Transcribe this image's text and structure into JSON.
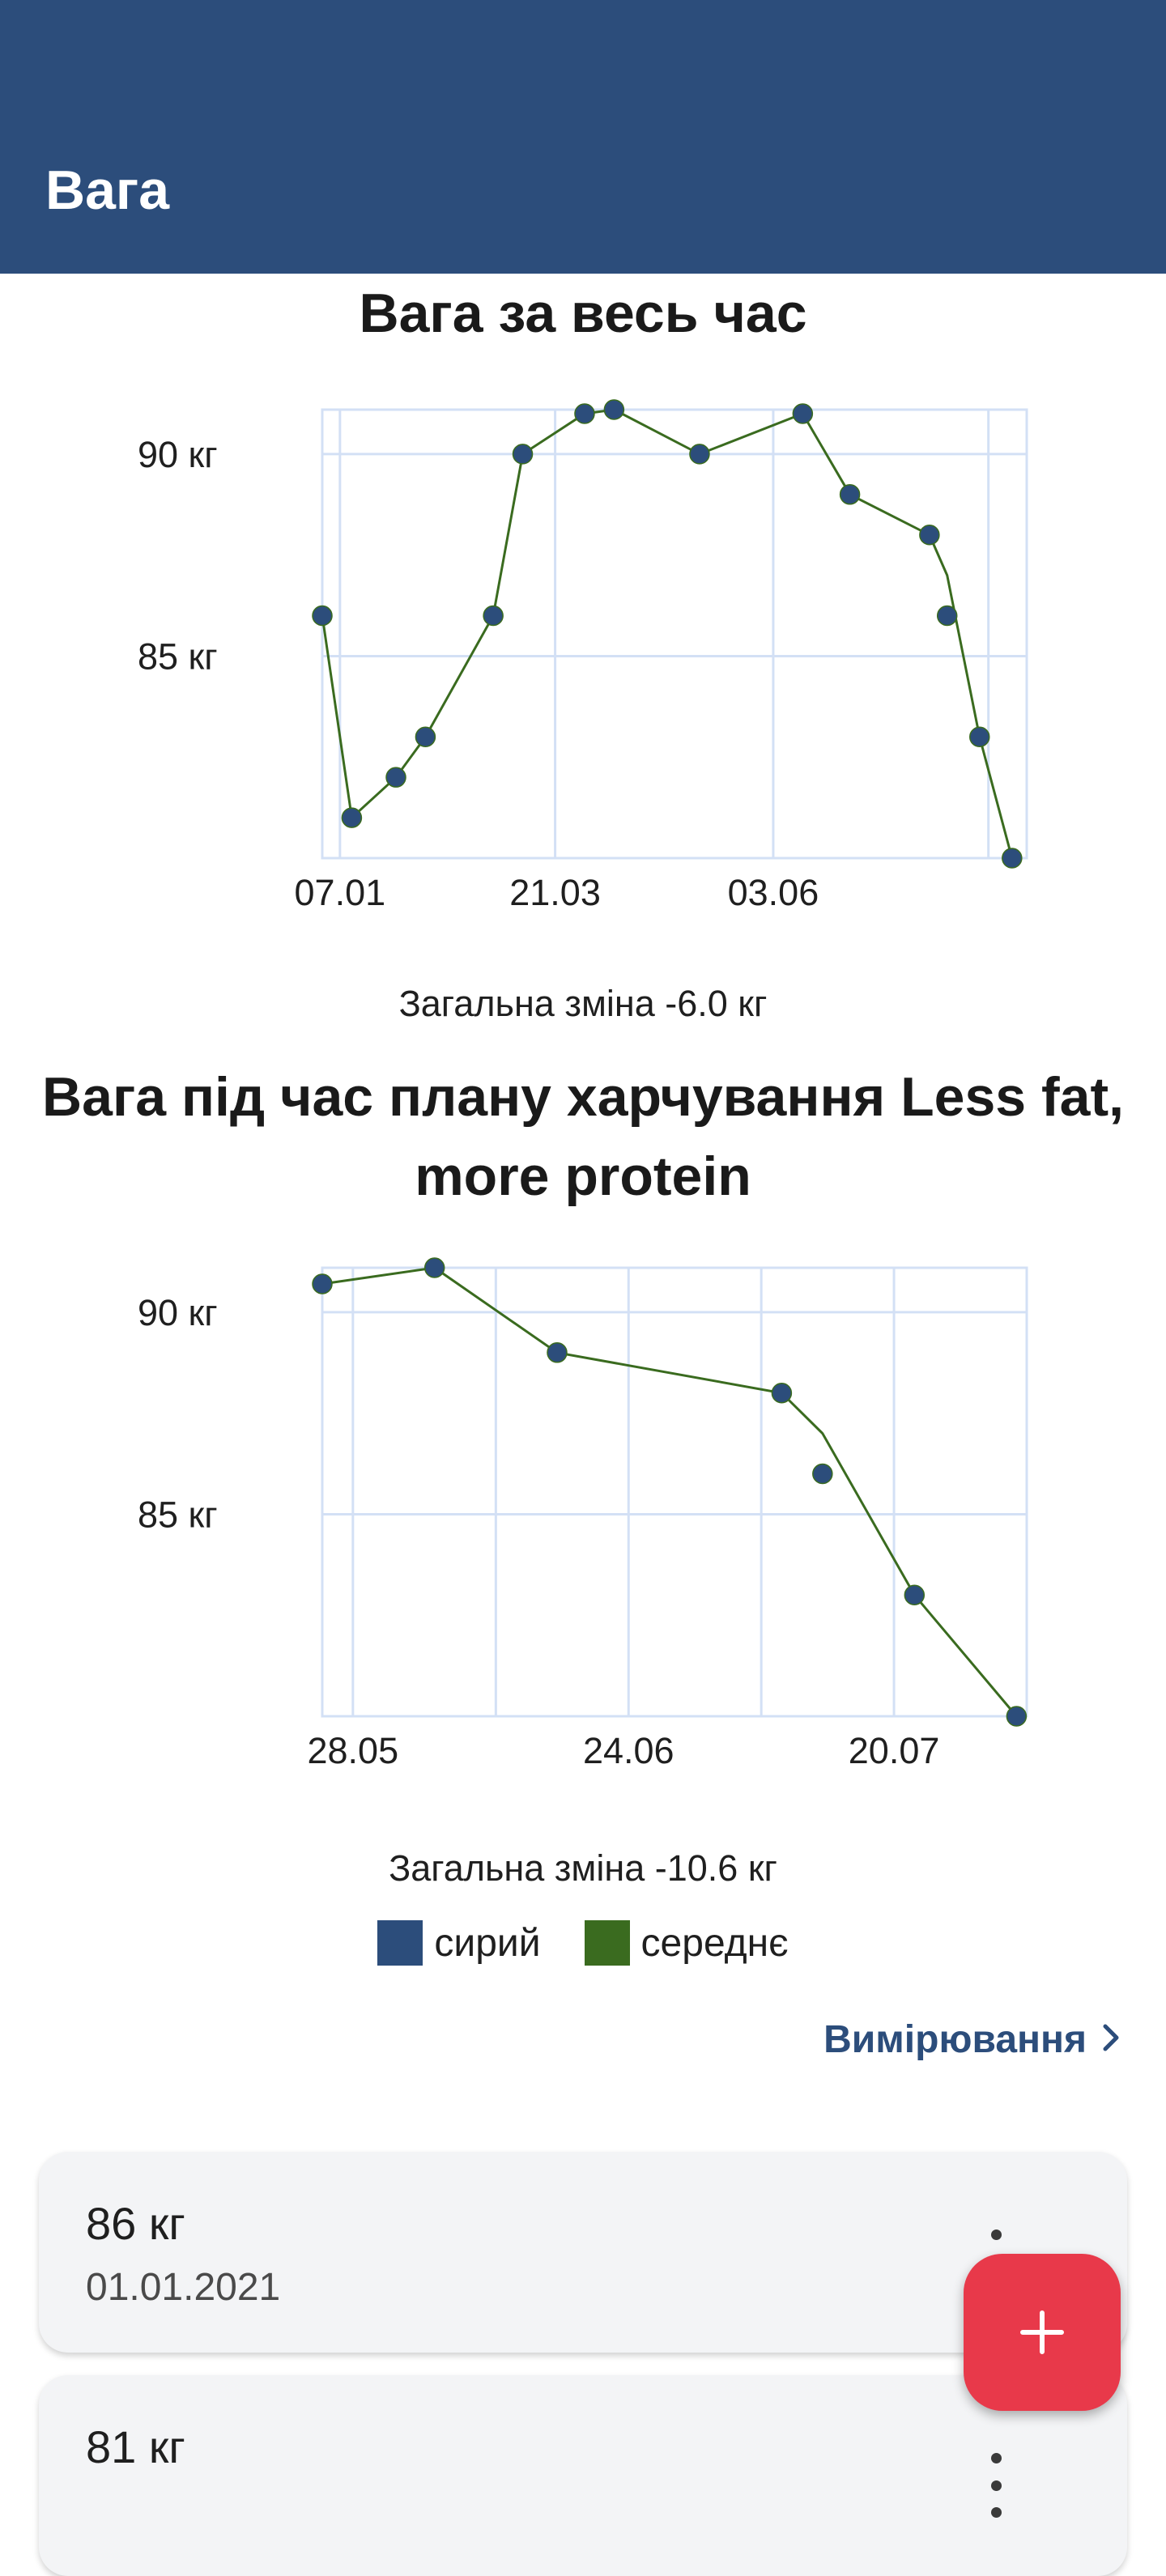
{
  "app_bar": {
    "title": "Вага"
  },
  "charts": {
    "all_time": {
      "total_change": "Загальна зміна -6.0 кг"
    },
    "plan": {
      "total_change": "Загальна зміна -10.6 кг"
    }
  },
  "chart_data": [
    {
      "type": "line",
      "title": "Вага за весь час",
      "x_tick_labels": [
        "07.01",
        "21.03",
        "03.06"
      ],
      "y_tick_labels": [
        "90 кг",
        "85 кг"
      ],
      "y_ticks": [
        90,
        85
      ],
      "ylim": [
        80,
        91.1
      ],
      "xlim_days": [
        -6,
        233
      ],
      "x_days_from_07_01": [
        -6,
        4,
        19,
        29,
        52,
        62,
        83,
        93,
        122,
        157,
        173,
        200,
        206,
        217,
        228
      ],
      "series": [
        {
          "name": "сирий",
          "color": "#2c4d7b",
          "values": [
            86,
            81,
            82,
            83,
            86,
            90,
            91,
            91.1,
            90,
            91,
            89,
            88,
            86,
            83,
            80
          ]
        },
        {
          "name": "середнє",
          "color": "#3a6b1f",
          "values": [
            86,
            81,
            82,
            83,
            86,
            90,
            91,
            91.1,
            90,
            91,
            89,
            88,
            87,
            83,
            80
          ]
        }
      ],
      "grid": true
    },
    {
      "type": "line",
      "title": "Вага під час плану харчування Less fat, more protein",
      "x_tick_labels": [
        "28.05",
        "24.06",
        "20.07"
      ],
      "y_tick_labels": [
        "90 кг",
        "85 кг"
      ],
      "y_ticks": [
        90,
        85
      ],
      "ylim": [
        80,
        91.1
      ],
      "xlim_days": [
        -3,
        66
      ],
      "x_days_from_28_05": [
        -3,
        8,
        20,
        42,
        46,
        55,
        65
      ],
      "series": [
        {
          "name": "сирий",
          "color": "#2c4d7b",
          "values": [
            90.7,
            91.1,
            89,
            88,
            86,
            83,
            80
          ]
        },
        {
          "name": "середнє",
          "color": "#3a6b1f",
          "values": [
            90.7,
            91.1,
            89,
            88,
            87,
            83,
            80
          ]
        }
      ],
      "grid": true
    }
  ],
  "legend": {
    "items": [
      "сирий",
      "середнє"
    ]
  },
  "measurements": {
    "link_label": "Вимірювання",
    "entries": [
      {
        "weight": "86 кг",
        "date": "01.01.2021"
      },
      {
        "weight": "81 кг",
        "date": ""
      }
    ]
  },
  "fab": {
    "icon": "plus-icon"
  },
  "colors": {
    "primary": "#2c4d7b",
    "raw": "#2c4d7b",
    "average": "#3a6b1f",
    "grid": "#d3e0f5",
    "fab": "#e8394a"
  }
}
